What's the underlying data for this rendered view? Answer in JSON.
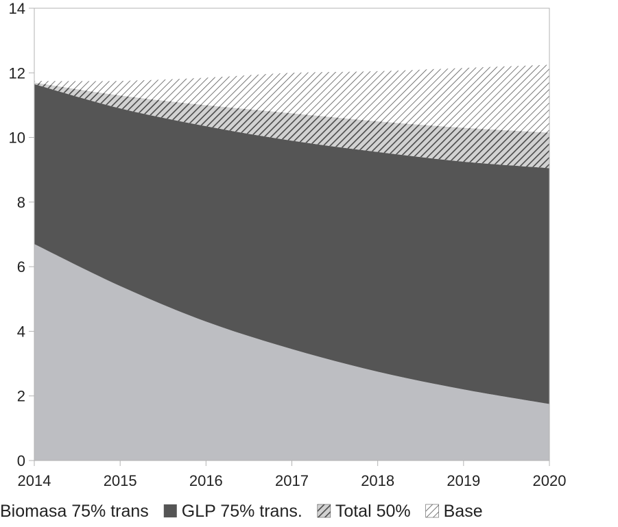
{
  "chart_data": {
    "type": "area",
    "stacked": true,
    "title": "",
    "xlabel": "",
    "ylabel": "",
    "x": [
      2014,
      2015,
      2016,
      2017,
      2018,
      2019,
      2020
    ],
    "xlim": [
      2014,
      2020
    ],
    "ylim": [
      0,
      14
    ],
    "yticks": [
      0,
      2,
      4,
      6,
      8,
      10,
      12,
      14
    ],
    "grid": false,
    "legend_position": "bottom",
    "series": [
      {
        "name": "Biomasa 75% trans",
        "values": [
          6.7,
          5.4,
          4.3,
          3.45,
          2.75,
          2.2,
          1.75
        ],
        "color": "#bdbec2",
        "pattern": "solid"
      },
      {
        "name": "GLP 75% trans.",
        "values": [
          4.95,
          5.5,
          6.05,
          6.45,
          6.8,
          7.05,
          7.3
        ],
        "color": "#555555",
        "pattern": "solid"
      },
      {
        "name": "Total 50%",
        "values": [
          0.05,
          0.4,
          0.65,
          0.85,
          0.95,
          1.05,
          1.1
        ],
        "color": "#555555",
        "pattern": "dense-hatch"
      },
      {
        "name": "Base",
        "values": [
          0.05,
          0.45,
          0.85,
          1.25,
          1.55,
          1.85,
          2.1
        ],
        "color": "#555555",
        "pattern": "sparse-hatch"
      }
    ]
  }
}
